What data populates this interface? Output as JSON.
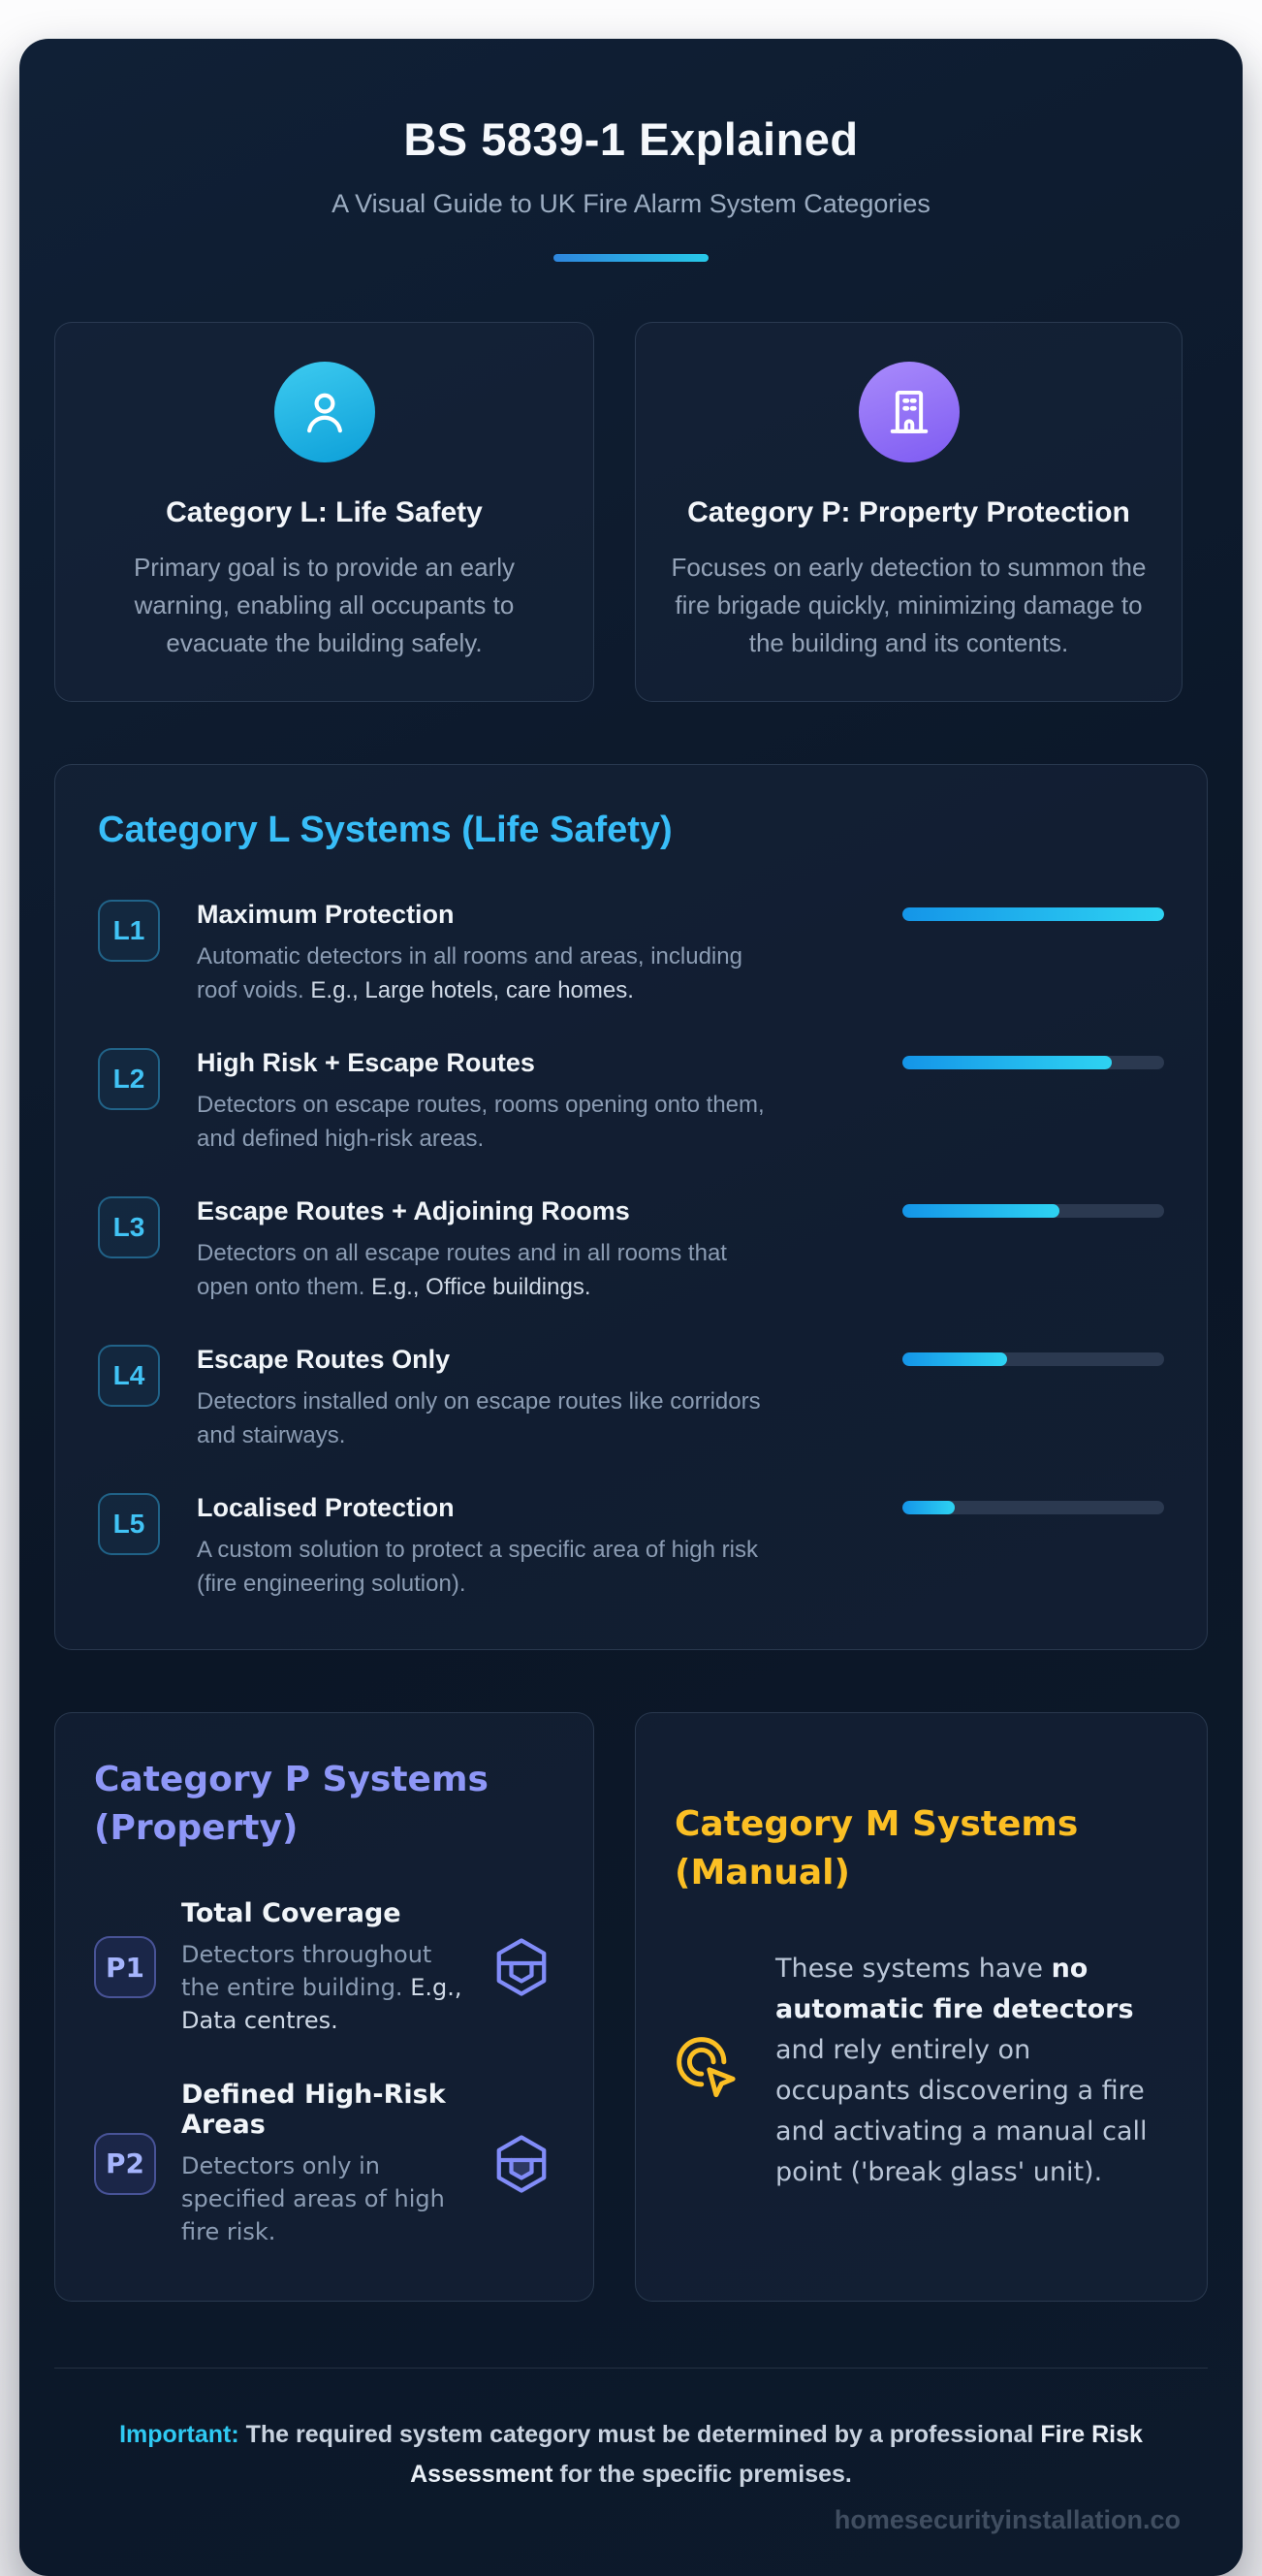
{
  "page": {
    "title": "BS 5839-1 Explained",
    "subtitle": "A Visual Guide to UK Fire Alarm System Categories"
  },
  "colors": {
    "accent_cyan": "#38bdf8",
    "accent_indigo": "#818cf8",
    "accent_amber": "#fbbf24",
    "bar_fill_start": "#1495e8",
    "bar_fill_end": "#2ed3f2",
    "circle_cyan": "#0c9fd8",
    "circle_purple": "#7e5bf2"
  },
  "icons": {
    "category_l": "user-icon",
    "category_p": "building-icon",
    "p_rows": "box-icon",
    "category_m": "cursor-click-icon"
  },
  "overview_cards": [
    {
      "title": "Category L: Life Safety",
      "description": "Primary goal is to provide an early warning, enabling all occupants to evacuate the building safely."
    },
    {
      "title": "Category P: Property Protection",
      "description": "Focuses on early detection to summon the fire brigade quickly, minimizing damage to the building and its contents."
    }
  ],
  "l_systems": {
    "heading": "Category L Systems (Life Safety)",
    "rows": [
      {
        "badge": "L1",
        "title": "Maximum Protection",
        "description": "Automatic detectors in all rooms and areas, including roof voids.",
        "example": "E.g., Large hotels, care homes.",
        "coverage_pct": 100
      },
      {
        "badge": "L2",
        "title": "High Risk + Escape Routes",
        "description": "Detectors on escape routes, rooms opening onto them, and defined high-risk areas.",
        "coverage_pct": 80
      },
      {
        "badge": "L3",
        "title": "Escape Routes + Adjoining Rooms",
        "description": "Detectors on all escape routes and in all rooms that open onto them.",
        "example": "E.g., Office buildings.",
        "coverage_pct": 60
      },
      {
        "badge": "L4",
        "title": "Escape Routes Only",
        "description": "Detectors installed only on escape routes like corridors and stairways.",
        "coverage_pct": 40
      },
      {
        "badge": "L5",
        "title": "Localised Protection",
        "description": "A custom solution to protect a specific area of high risk (fire engineering solution).",
        "coverage_pct": 20
      }
    ]
  },
  "p_systems": {
    "heading": "Category P Systems (Property)",
    "rows": [
      {
        "badge": "P1",
        "title": "Total Coverage",
        "description": "Detectors throughout the entire building.",
        "example": "E.g., Data centres."
      },
      {
        "badge": "P2",
        "title": "Defined High-Risk Areas",
        "description": "Detectors only in specified areas of high fire risk."
      }
    ]
  },
  "m_systems": {
    "heading": "Category M Systems (Manual)",
    "text_parts": [
      {
        "text": "These systems have "
      },
      {
        "text": "no automatic fire detectors",
        "emphasis": "bold"
      },
      {
        "text": " and rely entirely on occupants discovering a fire and activating a manual call point ('break glass' unit)."
      }
    ]
  },
  "footer": {
    "note_parts": [
      {
        "text": "Important:",
        "emphasis": "accent"
      },
      {
        "text": " The required system category must be determined by a professional "
      },
      {
        "text": "Fire Risk Assessment",
        "emphasis": "bold"
      },
      {
        "text": " for the specific premises."
      }
    ],
    "watermark": "homesecurityinstallation.co"
  }
}
